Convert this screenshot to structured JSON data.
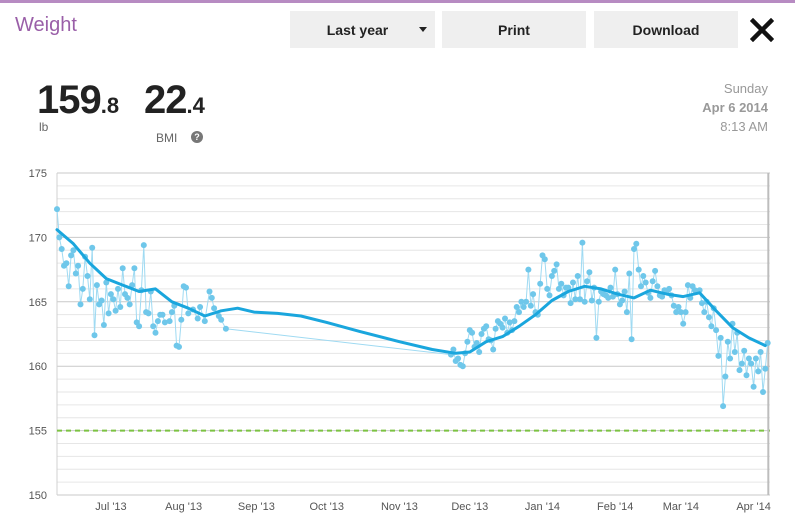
{
  "header": {
    "title": "Weight",
    "range_label": "Last year",
    "print_label": "Print",
    "download_label": "Download"
  },
  "summary": {
    "weight_int": "159",
    "weight_dec": ".8",
    "weight_unit": "lb",
    "bmi_int": "22",
    "bmi_dec": ".4",
    "bmi_label": "BMI",
    "help_symbol": "?",
    "day": "Sunday",
    "date": "Apr 6 2014",
    "time": "8:13 AM"
  },
  "colors": {
    "title": "#9a5fa8",
    "trend_line": "#1aa6dd",
    "points": "#6fc7ea",
    "goal_line": "#7cc242"
  },
  "chart_data": {
    "type": "line",
    "ylim": [
      150,
      175
    ],
    "yticks": [
      "150",
      "155",
      "160",
      "165",
      "170",
      "175"
    ],
    "x_tick_labels": [
      "Jul '13",
      "Aug '13",
      "Sep '13",
      "Oct '13",
      "Nov '13",
      "Dec '13",
      "Jan '14",
      "Feb '14",
      "Mar '14",
      "Apr '14"
    ],
    "x_tick_dates": [
      "2013-07-01",
      "2013-08-01",
      "2013-09-01",
      "2013-10-01",
      "2013-11-01",
      "2013-12-01",
      "2014-01-01",
      "2014-02-01",
      "2014-03-01",
      "2014-04-01"
    ],
    "x_range": [
      "2013-06-08",
      "2014-04-08"
    ],
    "goal": 155,
    "series": [
      {
        "kind": "trend",
        "points": [
          [
            "2013-06-08",
            170.6
          ],
          [
            "2013-06-15",
            169.5
          ],
          [
            "2013-06-22",
            168.0
          ],
          [
            "2013-06-29",
            166.8
          ],
          [
            "2013-07-06",
            166.3
          ],
          [
            "2013-07-13",
            165.8
          ],
          [
            "2013-07-20",
            166.0
          ],
          [
            "2013-07-27",
            165.0
          ],
          [
            "2013-08-03",
            164.5
          ],
          [
            "2013-08-10",
            163.9
          ],
          [
            "2013-08-17",
            164.3
          ],
          [
            "2013-08-24",
            164.5
          ],
          [
            "2013-08-31",
            164.2
          ],
          [
            "2013-09-10",
            164.1
          ],
          [
            "2013-09-20",
            163.9
          ],
          [
            "2013-10-01",
            163.4
          ],
          [
            "2013-10-15",
            162.7
          ],
          [
            "2013-11-01",
            161.9
          ],
          [
            "2013-11-15",
            161.3
          ],
          [
            "2013-11-25",
            161.0
          ],
          [
            "2013-12-01",
            161.1
          ],
          [
            "2013-12-08",
            161.9
          ],
          [
            "2013-12-15",
            162.3
          ],
          [
            "2013-12-22",
            163.1
          ],
          [
            "2013-12-29",
            164.0
          ],
          [
            "2014-01-05",
            165.1
          ],
          [
            "2014-01-12",
            165.8
          ],
          [
            "2014-01-19",
            166.2
          ],
          [
            "2014-01-26",
            166.0
          ],
          [
            "2014-02-02",
            165.6
          ],
          [
            "2014-02-09",
            165.3
          ],
          [
            "2014-02-16",
            165.9
          ],
          [
            "2014-02-23",
            165.6
          ],
          [
            "2014-03-02",
            165.4
          ],
          [
            "2014-03-09",
            165.7
          ],
          [
            "2014-03-16",
            164.3
          ],
          [
            "2014-03-23",
            163.0
          ],
          [
            "2014-03-30",
            162.2
          ],
          [
            "2014-04-06",
            161.6
          ]
        ]
      },
      {
        "kind": "readings",
        "points": [
          [
            "2013-06-08",
            172.2
          ],
          [
            "2013-06-09",
            170.0
          ],
          [
            "2013-06-10",
            169.1
          ],
          [
            "2013-06-11",
            167.8
          ],
          [
            "2013-06-12",
            168.0
          ],
          [
            "2013-06-13",
            166.2
          ],
          [
            "2013-06-14",
            168.6
          ],
          [
            "2013-06-15",
            169.0
          ],
          [
            "2013-06-16",
            167.2
          ],
          [
            "2013-06-17",
            167.8
          ],
          [
            "2013-06-18",
            164.8
          ],
          [
            "2013-06-19",
            166.0
          ],
          [
            "2013-06-20",
            168.5
          ],
          [
            "2013-06-21",
            167.0
          ],
          [
            "2013-06-22",
            165.2
          ],
          [
            "2013-06-23",
            169.2
          ],
          [
            "2013-06-24",
            162.4
          ],
          [
            "2013-06-25",
            166.3
          ],
          [
            "2013-06-26",
            164.8
          ],
          [
            "2013-06-27",
            165.1
          ],
          [
            "2013-06-28",
            163.2
          ],
          [
            "2013-06-29",
            166.5
          ],
          [
            "2013-06-30",
            164.1
          ],
          [
            "2013-07-01",
            165.6
          ],
          [
            "2013-07-02",
            165.2
          ],
          [
            "2013-07-03",
            164.3
          ],
          [
            "2013-07-04",
            166.0
          ],
          [
            "2013-07-05",
            164.6
          ],
          [
            "2013-07-06",
            167.6
          ],
          [
            "2013-07-07",
            165.6
          ],
          [
            "2013-07-08",
            165.3
          ],
          [
            "2013-07-09",
            164.8
          ],
          [
            "2013-07-10",
            166.3
          ],
          [
            "2013-07-11",
            167.6
          ],
          [
            "2013-07-12",
            163.4
          ],
          [
            "2013-07-13",
            163.1
          ],
          [
            "2013-07-14",
            165.9
          ],
          [
            "2013-07-15",
            169.4
          ],
          [
            "2013-07-16",
            164.2
          ],
          [
            "2013-07-17",
            164.1
          ],
          [
            "2013-07-18",
            165.8
          ],
          [
            "2013-07-19",
            163.1
          ],
          [
            "2013-07-20",
            162.6
          ],
          [
            "2013-07-21",
            163.5
          ],
          [
            "2013-07-22",
            164.0
          ],
          [
            "2013-07-23",
            164.0
          ],
          [
            "2013-07-24",
            163.4
          ],
          [
            "2013-07-26",
            163.5
          ],
          [
            "2013-07-27",
            164.2
          ],
          [
            "2013-07-28",
            164.7
          ],
          [
            "2013-07-29",
            161.6
          ],
          [
            "2013-07-30",
            161.5
          ],
          [
            "2013-07-31",
            163.6
          ],
          [
            "2013-08-01",
            166.2
          ],
          [
            "2013-08-02",
            166.1
          ],
          [
            "2013-08-03",
            164.1
          ],
          [
            "2013-08-05",
            164.4
          ],
          [
            "2013-08-07",
            163.7
          ],
          [
            "2013-08-08",
            164.6
          ],
          [
            "2013-08-10",
            163.5
          ],
          [
            "2013-08-12",
            165.8
          ],
          [
            "2013-08-13",
            165.3
          ],
          [
            "2013-08-14",
            164.5
          ],
          [
            "2013-08-16",
            163.9
          ],
          [
            "2013-08-17",
            163.6
          ],
          [
            "2013-08-19",
            162.9
          ],
          [
            "2013-11-23",
            160.9
          ],
          [
            "2013-11-24",
            161.3
          ],
          [
            "2013-11-25",
            160.4
          ],
          [
            "2013-11-26",
            160.6
          ],
          [
            "2013-11-27",
            160.1
          ],
          [
            "2013-11-28",
            160.0
          ],
          [
            "2013-11-29",
            161.0
          ],
          [
            "2013-11-30",
            161.9
          ],
          [
            "2013-12-01",
            162.8
          ],
          [
            "2013-12-02",
            162.6
          ],
          [
            "2013-12-03",
            161.5
          ],
          [
            "2013-12-04",
            161.8
          ],
          [
            "2013-12-05",
            161.1
          ],
          [
            "2013-12-06",
            162.5
          ],
          [
            "2013-12-07",
            162.9
          ],
          [
            "2013-12-08",
            163.1
          ],
          [
            "2013-12-09",
            162.1
          ],
          [
            "2013-12-10",
            162.0
          ],
          [
            "2013-12-11",
            161.3
          ],
          [
            "2013-12-12",
            162.9
          ],
          [
            "2013-12-13",
            163.5
          ],
          [
            "2013-12-14",
            163.3
          ],
          [
            "2013-12-15",
            163.0
          ],
          [
            "2013-12-16",
            163.7
          ],
          [
            "2013-12-17",
            162.6
          ],
          [
            "2013-12-18",
            163.4
          ],
          [
            "2013-12-19",
            162.8
          ],
          [
            "2013-12-20",
            163.5
          ],
          [
            "2013-12-21",
            164.6
          ],
          [
            "2013-12-22",
            164.2
          ],
          [
            "2013-12-23",
            165.0
          ],
          [
            "2013-12-24",
            164.6
          ],
          [
            "2013-12-25",
            165.0
          ],
          [
            "2013-12-26",
            167.5
          ],
          [
            "2013-12-27",
            164.7
          ],
          [
            "2013-12-28",
            165.6
          ],
          [
            "2013-12-29",
            164.2
          ],
          [
            "2013-12-30",
            164.0
          ],
          [
            "2013-12-31",
            166.4
          ],
          [
            "2014-01-01",
            168.6
          ],
          [
            "2014-01-02",
            168.3
          ],
          [
            "2014-01-03",
            166.0
          ],
          [
            "2014-01-04",
            165.5
          ],
          [
            "2014-01-05",
            167.0
          ],
          [
            "2014-01-06",
            167.4
          ],
          [
            "2014-01-07",
            167.9
          ],
          [
            "2014-01-08",
            166.0
          ],
          [
            "2014-01-09",
            166.4
          ],
          [
            "2014-01-10",
            165.5
          ],
          [
            "2014-01-11",
            166.1
          ],
          [
            "2014-01-12",
            166.1
          ],
          [
            "2014-01-13",
            164.9
          ],
          [
            "2014-01-14",
            166.5
          ],
          [
            "2014-01-15",
            165.2
          ],
          [
            "2014-01-16",
            167.0
          ],
          [
            "2014-01-17",
            165.2
          ],
          [
            "2014-01-18",
            169.6
          ],
          [
            "2014-01-19",
            165.0
          ],
          [
            "2014-01-20",
            166.6
          ],
          [
            "2014-01-21",
            167.3
          ],
          [
            "2014-01-22",
            165.1
          ],
          [
            "2014-01-23",
            166.1
          ],
          [
            "2014-01-24",
            162.2
          ],
          [
            "2014-01-25",
            165.0
          ],
          [
            "2014-01-26",
            165.8
          ],
          [
            "2014-01-27",
            165.6
          ],
          [
            "2014-01-28",
            165.5
          ],
          [
            "2014-01-29",
            165.3
          ],
          [
            "2014-01-30",
            166.1
          ],
          [
            "2014-01-31",
            165.4
          ],
          [
            "2014-02-01",
            167.5
          ],
          [
            "2014-02-02",
            165.6
          ],
          [
            "2014-02-03",
            164.8
          ],
          [
            "2014-02-04",
            165.1
          ],
          [
            "2014-02-05",
            165.8
          ],
          [
            "2014-02-06",
            164.2
          ],
          [
            "2014-02-07",
            167.2
          ],
          [
            "2014-02-08",
            162.1
          ],
          [
            "2014-02-09",
            169.1
          ],
          [
            "2014-02-10",
            169.5
          ],
          [
            "2014-02-11",
            167.5
          ],
          [
            "2014-02-12",
            166.2
          ],
          [
            "2014-02-13",
            167.0
          ],
          [
            "2014-02-14",
            166.5
          ],
          [
            "2014-02-15",
            165.7
          ],
          [
            "2014-02-16",
            165.3
          ],
          [
            "2014-02-17",
            166.6
          ],
          [
            "2014-02-18",
            167.4
          ],
          [
            "2014-02-19",
            166.2
          ],
          [
            "2014-02-20",
            165.5
          ],
          [
            "2014-02-21",
            165.4
          ],
          [
            "2014-02-22",
            165.9
          ],
          [
            "2014-02-23",
            165.8
          ],
          [
            "2014-02-24",
            166.0
          ],
          [
            "2014-02-25",
            165.5
          ],
          [
            "2014-02-26",
            164.7
          ],
          [
            "2014-02-27",
            164.2
          ],
          [
            "2014-02-28",
            164.6
          ],
          [
            "2014-03-01",
            164.2
          ],
          [
            "2014-03-02",
            163.3
          ],
          [
            "2014-03-03",
            164.2
          ],
          [
            "2014-03-04",
            166.3
          ],
          [
            "2014-03-05",
            165.3
          ],
          [
            "2014-03-06",
            166.2
          ],
          [
            "2014-03-07",
            165.9
          ],
          [
            "2014-03-08",
            165.8
          ],
          [
            "2014-03-09",
            165.9
          ],
          [
            "2014-03-10",
            164.9
          ],
          [
            "2014-03-11",
            164.2
          ],
          [
            "2014-03-12",
            165.0
          ],
          [
            "2014-03-13",
            163.8
          ],
          [
            "2014-03-14",
            163.1
          ],
          [
            "2014-03-15",
            164.5
          ],
          [
            "2014-03-16",
            162.8
          ],
          [
            "2014-03-17",
            160.8
          ],
          [
            "2014-03-18",
            162.2
          ],
          [
            "2014-03-19",
            156.9
          ],
          [
            "2014-03-20",
            159.2
          ],
          [
            "2014-03-21",
            161.9
          ],
          [
            "2014-03-22",
            160.6
          ],
          [
            "2014-03-23",
            163.3
          ],
          [
            "2014-03-24",
            161.1
          ],
          [
            "2014-03-25",
            162.6
          ],
          [
            "2014-03-26",
            159.7
          ],
          [
            "2014-03-27",
            160.2
          ],
          [
            "2014-03-28",
            161.2
          ],
          [
            "2014-03-29",
            159.3
          ],
          [
            "2014-03-30",
            160.6
          ],
          [
            "2014-03-31",
            160.2
          ],
          [
            "2014-04-01",
            158.4
          ],
          [
            "2014-04-02",
            160.6
          ],
          [
            "2014-04-03",
            159.6
          ],
          [
            "2014-04-04",
            161.1
          ],
          [
            "2014-04-05",
            158.0
          ],
          [
            "2014-04-06",
            159.8
          ],
          [
            "2014-04-07",
            161.8
          ]
        ]
      }
    ]
  }
}
